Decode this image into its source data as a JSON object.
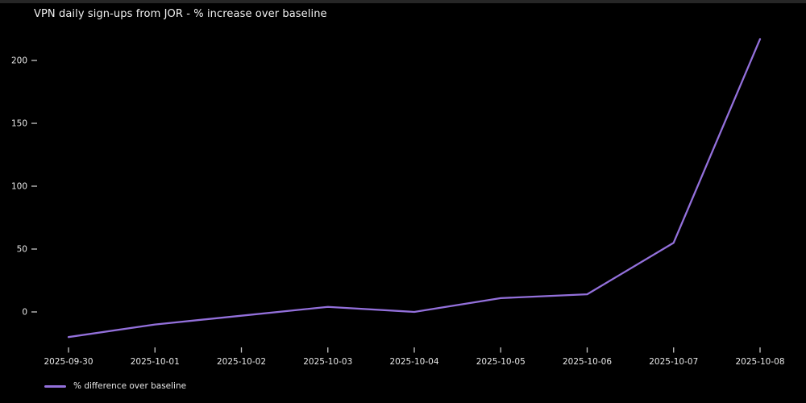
{
  "colors": {
    "background": "#000000",
    "top_edge": "#262626",
    "title_text": "#f2f2f2",
    "tick_text": "#e8e8e8",
    "tick_mark": "#c8c8c8",
    "line": "#9370db"
  },
  "chart_data": {
    "type": "line",
    "title": "VPN daily sign-ups from JOR - % increase over baseline",
    "x": [
      "2025-09-30",
      "2025-10-01",
      "2025-10-02",
      "2025-10-03",
      "2025-10-04",
      "2025-10-05",
      "2025-10-06",
      "2025-10-07",
      "2025-10-08"
    ],
    "series": [
      {
        "name": "% difference over baseline",
        "color": "#9370db",
        "values": [
          -20,
          -10,
          -3,
          4,
          0,
          11,
          14,
          55,
          217
        ]
      }
    ],
    "yticks": [
      0,
      50,
      100,
      150,
      200
    ],
    "ylim": [
      -33,
      230
    ],
    "xlabel": "",
    "ylabel": "",
    "grid": false,
    "legend_position": "lower-left"
  }
}
